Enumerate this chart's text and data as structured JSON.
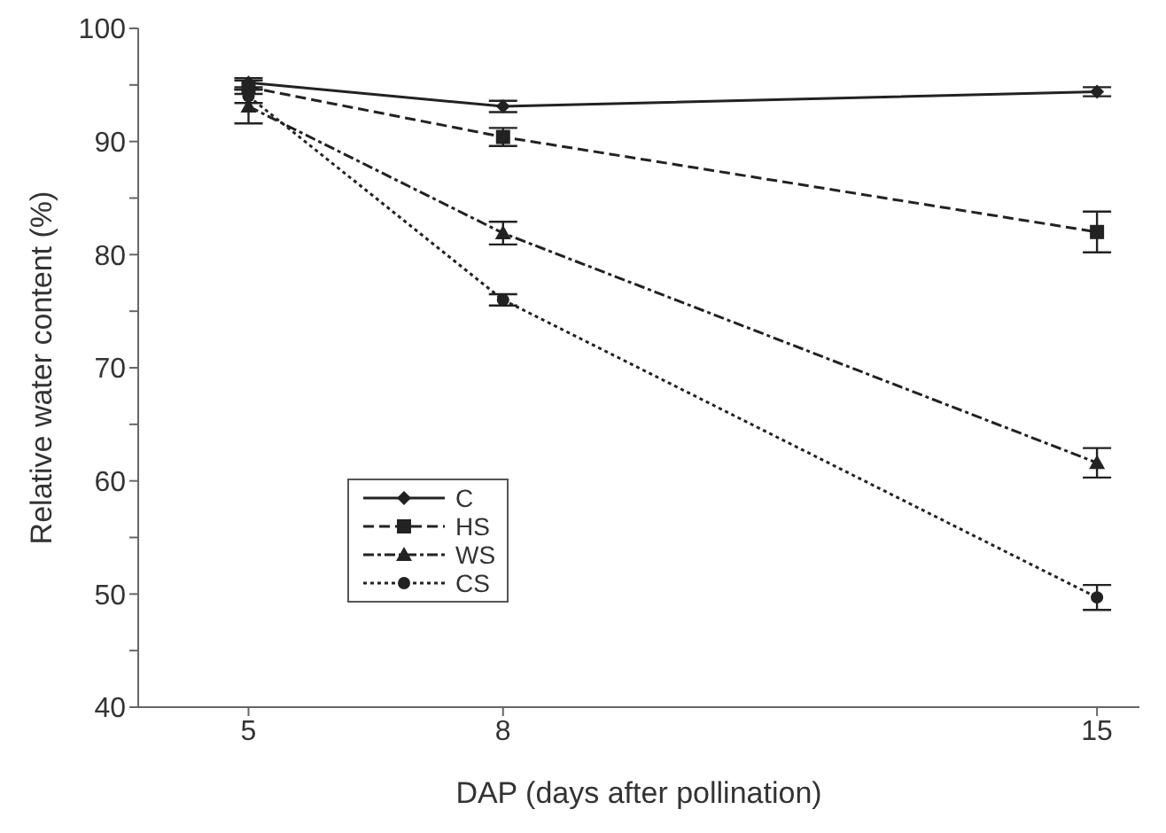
{
  "chart_data": {
    "type": "line",
    "xlabel": "DAP (days after pollination)",
    "ylabel": "Relative water content (%)",
    "x": [
      5,
      8,
      15
    ],
    "xlim": [
      3.7,
      15.5
    ],
    "xticks": [
      5,
      8,
      15
    ],
    "ylim": [
      40,
      100
    ],
    "yticks": [
      40,
      {
        "value": 45,
        "label": null
      },
      50,
      {
        "value": 55,
        "label": null
      },
      60,
      {
        "value": 65,
        "label": null
      },
      70,
      {
        "value": 75,
        "label": null
      },
      80,
      {
        "value": 85,
        "label": null
      },
      90,
      {
        "value": 95,
        "label": null
      },
      100
    ],
    "grid": false,
    "legend": "bottom left",
    "series": [
      {
        "name": "C",
        "color": "#222222",
        "values": [
          95.2,
          93.1,
          94.4
        ],
        "errors": [
          0.4,
          0.5,
          0.4
        ],
        "marker": "diamond",
        "line_style": "solid"
      },
      {
        "name": "HS",
        "color": "#222222",
        "values": [
          94.8,
          90.4,
          82
        ],
        "errors": [
          0.6,
          0.8,
          1.8
        ],
        "marker": "square",
        "line_style": "dashed"
      },
      {
        "name": "WS",
        "color": "#222222",
        "values": [
          93.1,
          81.9,
          61.6
        ],
        "errors": [
          1.5,
          1,
          1.3
        ],
        "marker": "triangle",
        "line_style": "dashdot"
      },
      {
        "name": "CS",
        "color": "#222222",
        "values": [
          94,
          76,
          49.7
        ],
        "errors": [
          0.6,
          0.5,
          1.1
        ],
        "marker": "circle",
        "line_style": "dotted"
      }
    ]
  }
}
